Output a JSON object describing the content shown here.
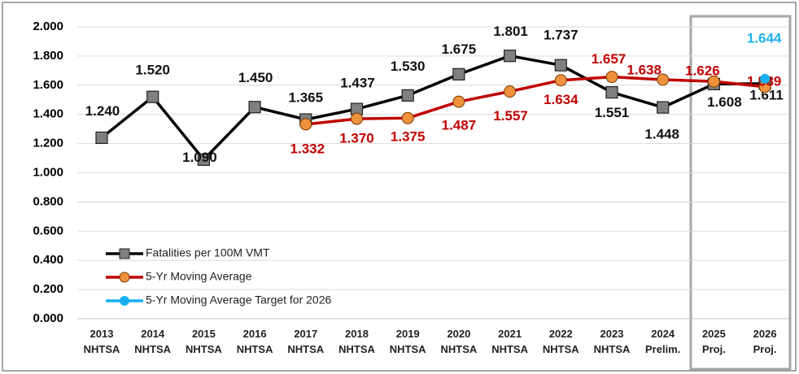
{
  "chart_data": {
    "type": "line",
    "categories": [
      [
        "2013",
        "NHTSA"
      ],
      [
        "2014",
        "NHTSA"
      ],
      [
        "2015",
        "NHTSA"
      ],
      [
        "2016",
        "NHTSA"
      ],
      [
        "2017",
        "NHTSA"
      ],
      [
        "2018",
        "NHTSA"
      ],
      [
        "2019",
        "NHTSA"
      ],
      [
        "2020",
        "NHTSA"
      ],
      [
        "2021",
        "NHTSA"
      ],
      [
        "2022",
        "NHTSA"
      ],
      [
        "2023",
        "NHTSA"
      ],
      [
        "2024",
        "Prelim."
      ],
      [
        "2025",
        "Proj."
      ],
      [
        "2026",
        "Proj."
      ]
    ],
    "series": [
      {
        "name": "Fatalities per 100M VMT",
        "color": "#000000",
        "marker": "square",
        "marker_color": "#808080",
        "values": [
          1.24,
          1.52,
          1.09,
          1.45,
          1.365,
          1.437,
          1.53,
          1.675,
          1.801,
          1.737,
          1.551,
          1.448,
          1.608,
          1.611
        ],
        "value_labels": [
          "1.240",
          "1.520",
          "1.090",
          "1.450",
          "1.365",
          "1.437",
          "1.530",
          "1.675",
          "1.801",
          "1.737",
          "1.551",
          "1.448",
          "1.608",
          "1.611"
        ]
      },
      {
        "name": "5-Yr Moving Average",
        "color": "#c00000",
        "marker": "circle",
        "marker_color": "#f0913c",
        "values": [
          null,
          null,
          null,
          null,
          1.332,
          1.37,
          1.375,
          1.487,
          1.557,
          1.634,
          1.657,
          1.638,
          1.626,
          1.589
        ],
        "value_labels": [
          null,
          null,
          null,
          null,
          "1.332",
          "1.370",
          "1.375",
          "1.487",
          "1.557",
          "1.634",
          "1.657",
          "1.638",
          "1.626",
          "1.589"
        ]
      },
      {
        "name": "5-Yr Moving Average Target for 2026",
        "color": "#1ab0f0",
        "marker": "circle",
        "marker_color": "#1ab0f0",
        "values": [
          null,
          null,
          null,
          null,
          null,
          null,
          null,
          null,
          null,
          null,
          null,
          null,
          null,
          1.644
        ],
        "value_labels": [
          null,
          null,
          null,
          null,
          null,
          null,
          null,
          null,
          null,
          null,
          null,
          null,
          null,
          "1.644"
        ]
      }
    ],
    "ylim": [
      0,
      2
    ],
    "yticks": [
      {
        "value": 0,
        "label": "0.000"
      },
      {
        "value": 0.2,
        "label": "0.200"
      },
      {
        "value": 0.4,
        "label": "0.400"
      },
      {
        "value": 0.6,
        "label": "0.600"
      },
      {
        "value": 0.8,
        "label": "0.800"
      },
      {
        "value": 1,
        "label": "1.000"
      },
      {
        "value": 1.2,
        "label": "1.200"
      },
      {
        "value": 1.4,
        "label": "1.400"
      },
      {
        "value": 1.6,
        "label": "1.600"
      },
      {
        "value": 1.8,
        "label": "1.800"
      },
      {
        "value": 2,
        "label": "2.000"
      }
    ],
    "grid": true,
    "legend": "lower left"
  }
}
